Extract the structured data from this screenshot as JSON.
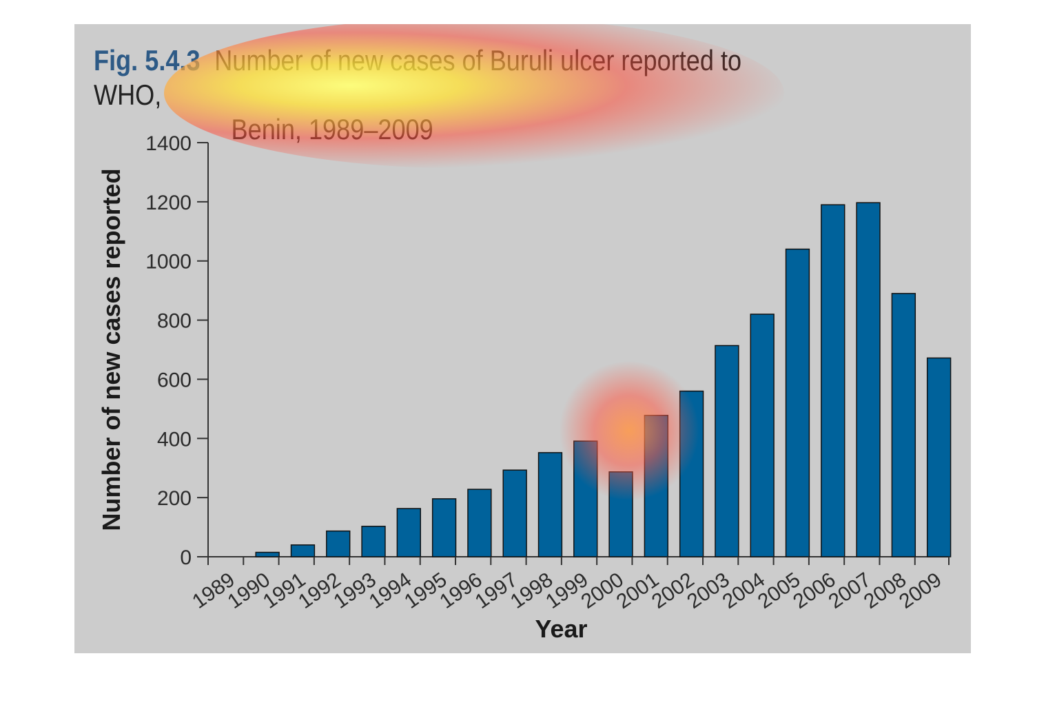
{
  "figure": {
    "number": "Fig. 5.4.3",
    "title_line1": "Number of new cases of Buruli ulcer reported to WHO,",
    "title_line2": "Benin, 1989–2009"
  },
  "colors": {
    "bar": "#00629b",
    "background": "#cccccc",
    "figno": "#2d5a86"
  },
  "chart_data": {
    "type": "bar",
    "title": "Number of new cases of Buruli ulcer reported to WHO, Benin, 1989–2009",
    "xlabel": "Year",
    "ylabel": "Number of new cases reported",
    "ylim": [
      0,
      1400
    ],
    "yticks": [
      0,
      200,
      400,
      600,
      800,
      1000,
      1200,
      1400
    ],
    "categories": [
      "1989",
      "1990",
      "1991",
      "1992",
      "1993",
      "1994",
      "1995",
      "1996",
      "1997",
      "1998",
      "1999",
      "2000",
      "2001",
      "2002",
      "2003",
      "2004",
      "2005",
      "2006",
      "2007",
      "2008",
      "2009"
    ],
    "values": [
      0,
      15,
      40,
      87,
      103,
      163,
      196,
      228,
      293,
      352,
      391,
      287,
      478,
      560,
      714,
      820,
      1040,
      1190,
      1197,
      890,
      672
    ],
    "grid": false,
    "legend": "none"
  }
}
